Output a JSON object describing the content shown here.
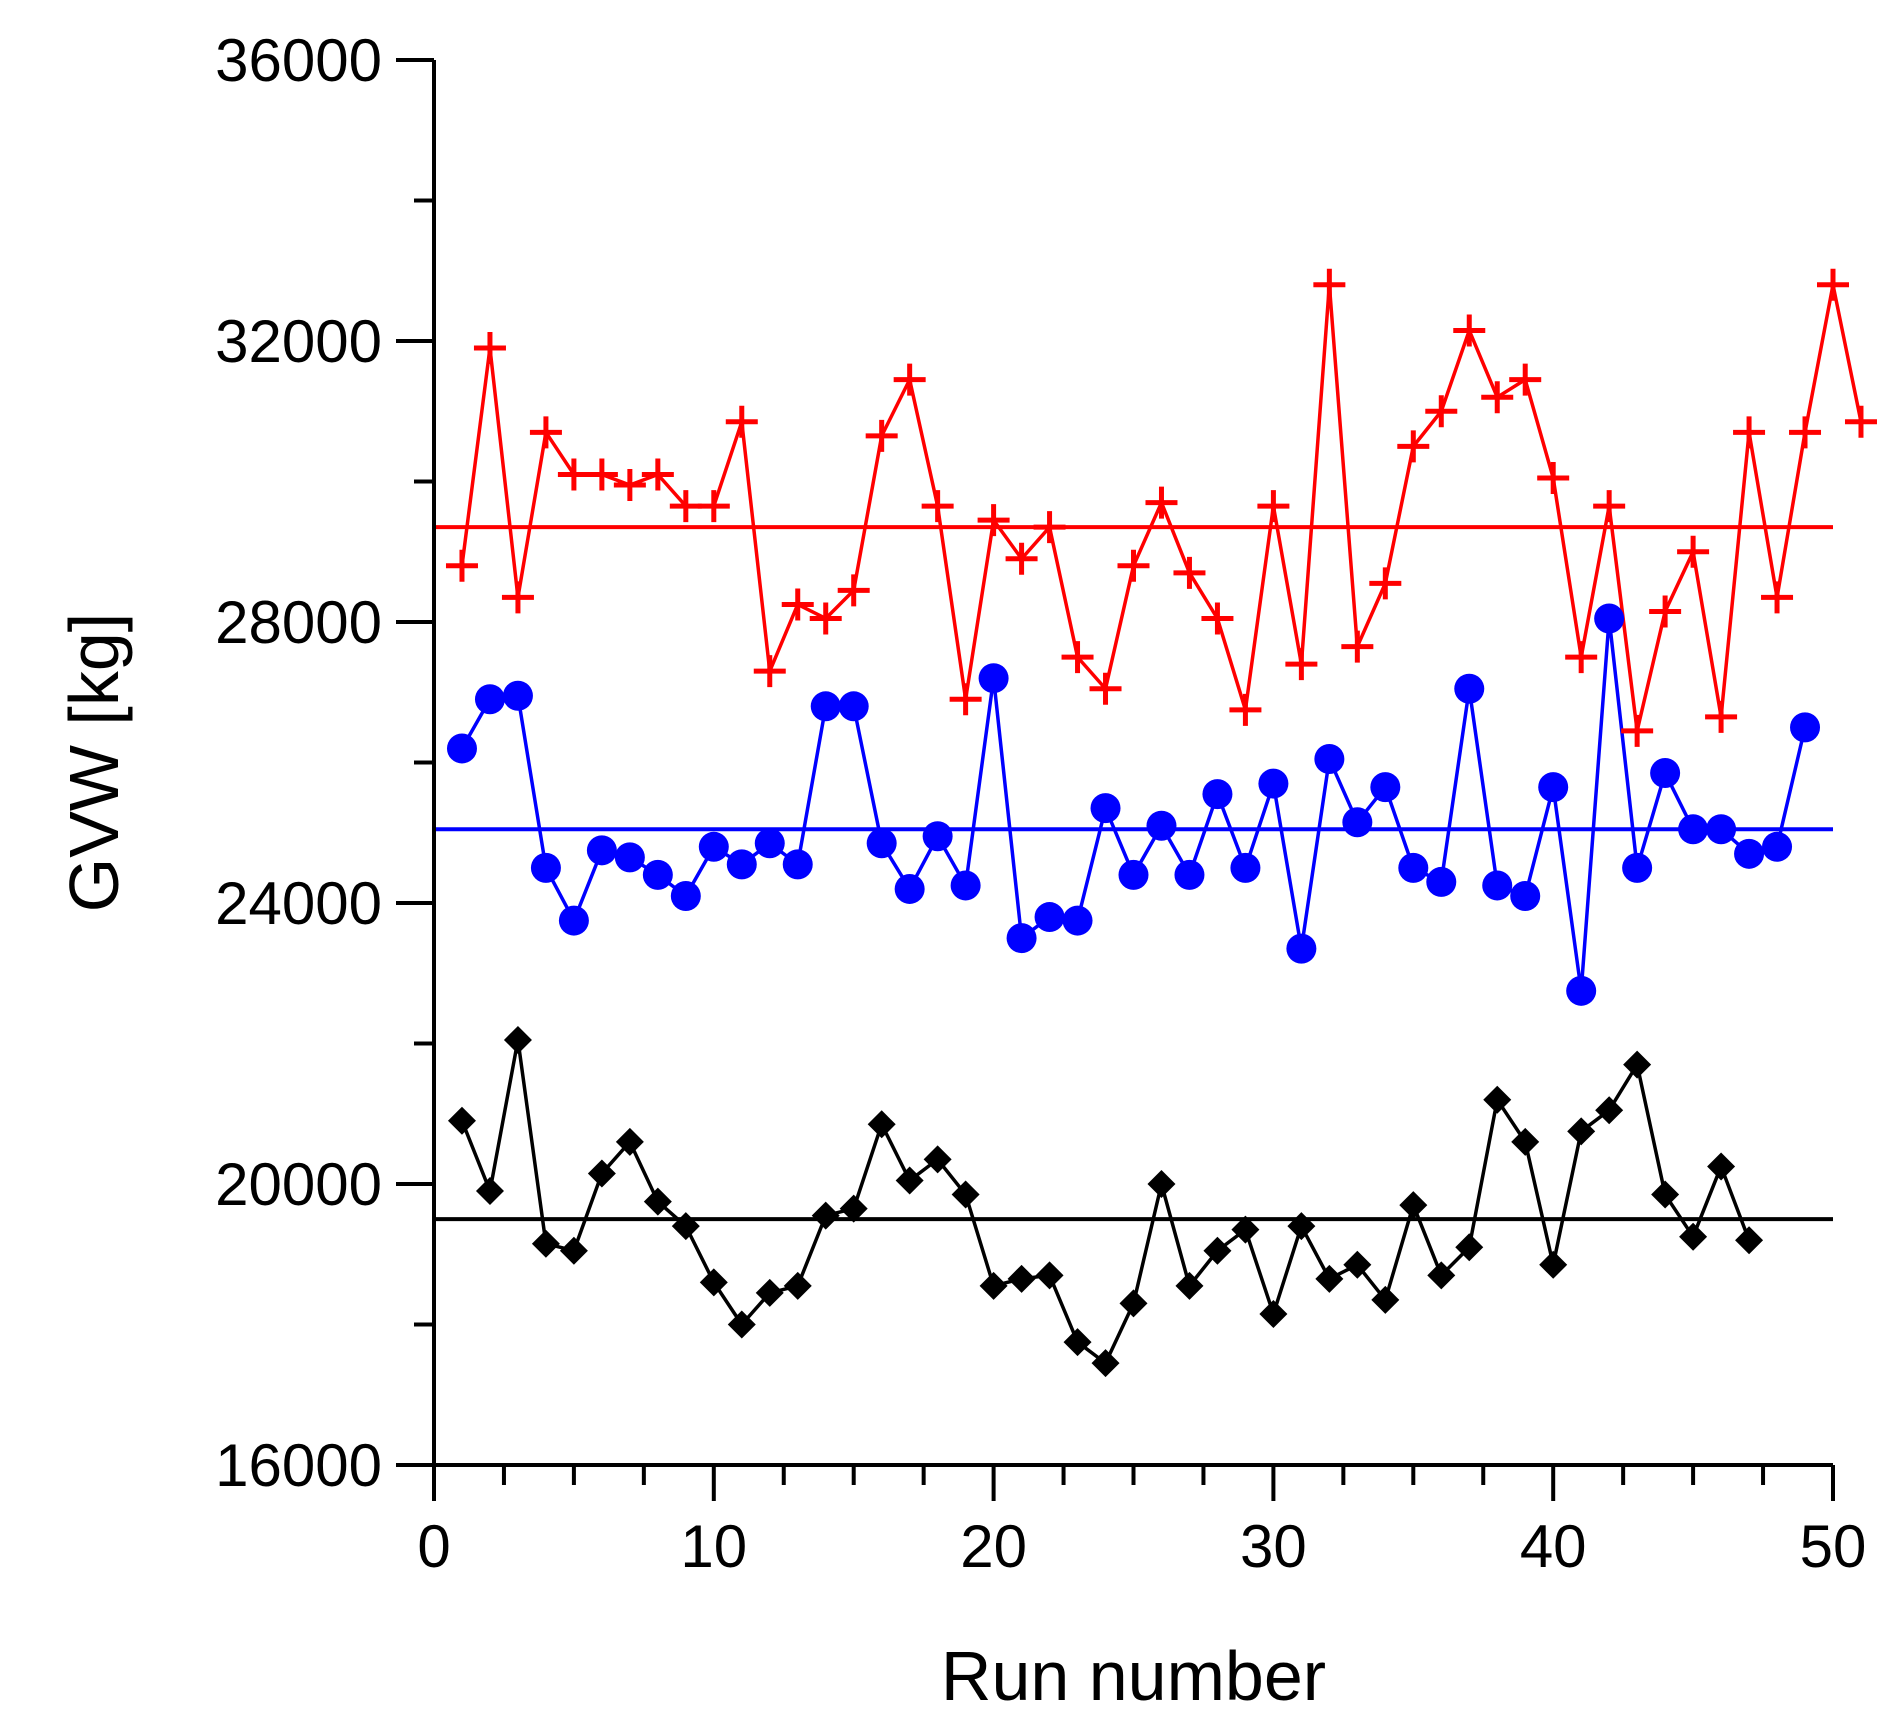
{
  "chart_data": {
    "type": "line",
    "xlabel": "Run number",
    "ylabel": "GVW [kg]",
    "xlim": [
      0,
      50
    ],
    "ylim": [
      16000,
      36000
    ],
    "x_ticks": [
      0,
      10,
      20,
      30,
      40,
      50
    ],
    "x_tick_labels": [
      "0",
      "10",
      "20",
      "30",
      "40",
      "50"
    ],
    "y_ticks": [
      16000,
      20000,
      24000,
      28000,
      32000,
      36000
    ],
    "y_tick_labels": [
      "16000",
      "20000",
      "24000",
      "28000",
      "32000",
      "36000"
    ],
    "grid": false,
    "legend": "none",
    "series": [
      {
        "color": "#ff0000",
        "marker": "plus",
        "mean_line": 29350,
        "x": [
          1,
          2,
          3,
          4,
          5,
          6,
          7,
          8,
          9,
          10,
          11,
          12,
          13,
          14,
          15,
          16,
          17,
          18,
          19,
          20,
          21,
          22,
          23,
          24,
          25,
          26,
          27,
          28,
          29,
          30,
          31,
          32,
          33,
          34,
          35,
          36,
          37,
          38,
          39,
          40,
          41,
          42,
          43,
          44,
          45,
          46,
          47,
          48,
          49,
          50,
          51
        ],
        "values": [
          28800,
          31900,
          28350,
          30700,
          30100,
          30100,
          29950,
          30100,
          29650,
          29650,
          30850,
          27300,
          28250,
          28050,
          28450,
          30650,
          31450,
          29650,
          26900,
          29450,
          28900,
          29350,
          27500,
          27050,
          28800,
          29700,
          28700,
          28050,
          26750,
          29650,
          27400,
          32800,
          27650,
          28550,
          30500,
          31000,
          32150,
          31200,
          31450,
          30050,
          27500,
          29650,
          26450,
          28150,
          29000,
          26650,
          30700,
          28350,
          30700,
          32800,
          30850
        ]
      },
      {
        "color": "#0000ff",
        "marker": "circle",
        "mean_line": 25050,
        "x": [
          1,
          2,
          3,
          4,
          5,
          6,
          7,
          8,
          9,
          10,
          11,
          12,
          13,
          14,
          15,
          16,
          17,
          18,
          19,
          20,
          21,
          22,
          23,
          24,
          25,
          26,
          27,
          28,
          29,
          30,
          31,
          32,
          33,
          34,
          35,
          36,
          37,
          38,
          39,
          40,
          41,
          42,
          43,
          44,
          45,
          46,
          47,
          48,
          49
        ],
        "values": [
          26200,
          26900,
          26950,
          24500,
          23750,
          24750,
          24650,
          24400,
          24100,
          24800,
          24550,
          24850,
          24550,
          26800,
          26800,
          24850,
          24200,
          24950,
          24250,
          27200,
          23500,
          23800,
          23750,
          25350,
          24400,
          25100,
          24400,
          25550,
          24500,
          25700,
          23350,
          26050,
          25150,
          25650,
          24500,
          24300,
          27050,
          24250,
          24100,
          25650,
          22750,
          28050,
          24500,
          25850,
          25050,
          25050,
          24700,
          24800,
          26500
        ]
      },
      {
        "color": "#000000",
        "marker": "diamond",
        "mean_line": 19500,
        "x": [
          1,
          2,
          3,
          4,
          5,
          6,
          7,
          8,
          9,
          10,
          11,
          12,
          13,
          14,
          15,
          16,
          17,
          18,
          19,
          20,
          21,
          22,
          23,
          24,
          25,
          26,
          27,
          28,
          29,
          30,
          31,
          32,
          33,
          34,
          35,
          36,
          37,
          38,
          39,
          40,
          41,
          42,
          43,
          44,
          45,
          46,
          47
        ],
        "values": [
          20900,
          19900,
          22050,
          19150,
          19050,
          20150,
          20600,
          19750,
          19400,
          18600,
          18000,
          18450,
          18550,
          19550,
          19650,
          20850,
          20050,
          20350,
          19850,
          18550,
          18650,
          18700,
          17750,
          17450,
          18300,
          20000,
          18550,
          19050,
          19350,
          18150,
          19400,
          18650,
          18850,
          18350,
          19700,
          18700,
          19100,
          21200,
          20600,
          18850,
          20750,
          21050,
          21700,
          19850,
          19250,
          20250,
          19200
        ]
      }
    ]
  }
}
